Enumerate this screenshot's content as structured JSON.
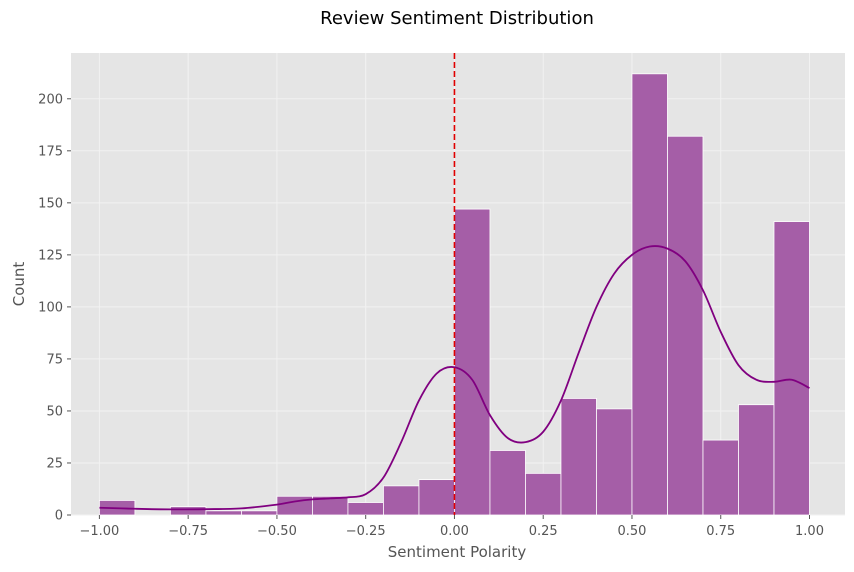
{
  "chart_data": {
    "type": "bar",
    "title": "Review Sentiment Distribution",
    "xlabel": "Sentiment Polarity",
    "ylabel": "Count",
    "xlim": [
      -1.08,
      1.1
    ],
    "ylim": [
      0,
      222
    ],
    "grid": true,
    "legend": "none",
    "colors": {
      "background": "#e5e5e5",
      "bar_fill": "#a55ea7",
      "bar_edge": "#ffffff",
      "kde_line": "#800080",
      "reference_line": "#e00000",
      "grid": "#f2f2f2",
      "text": "#555555"
    },
    "bins": [
      {
        "x0": -1.0,
        "x1": -0.9,
        "count": 7
      },
      {
        "x0": -0.9,
        "x1": -0.8,
        "count": 0
      },
      {
        "x0": -0.8,
        "x1": -0.7,
        "count": 4
      },
      {
        "x0": -0.7,
        "x1": -0.6,
        "count": 2
      },
      {
        "x0": -0.6,
        "x1": -0.5,
        "count": 2
      },
      {
        "x0": -0.5,
        "x1": -0.4,
        "count": 9
      },
      {
        "x0": -0.4,
        "x1": -0.3,
        "count": 9
      },
      {
        "x0": -0.3,
        "x1": -0.2,
        "count": 6
      },
      {
        "x0": -0.2,
        "x1": -0.1,
        "count": 14
      },
      {
        "x0": -0.1,
        "x1": 0.0,
        "count": 17
      },
      {
        "x0": 0.0,
        "x1": 0.1,
        "count": 147
      },
      {
        "x0": 0.1,
        "x1": 0.2,
        "count": 31
      },
      {
        "x0": 0.2,
        "x1": 0.3,
        "count": 20
      },
      {
        "x0": 0.3,
        "x1": 0.4,
        "count": 56
      },
      {
        "x0": 0.4,
        "x1": 0.5,
        "count": 51
      },
      {
        "x0": 0.5,
        "x1": 0.6,
        "count": 212
      },
      {
        "x0": 0.6,
        "x1": 0.7,
        "count": 182
      },
      {
        "x0": 0.7,
        "x1": 0.8,
        "count": 36
      },
      {
        "x0": 0.8,
        "x1": 0.9,
        "count": 53
      },
      {
        "x0": 0.9,
        "x1": 1.0,
        "count": 141
      }
    ],
    "kde": {
      "x": [
        -1.0,
        -0.9,
        -0.8,
        -0.7,
        -0.6,
        -0.5,
        -0.45,
        -0.4,
        -0.35,
        -0.3,
        -0.25,
        -0.2,
        -0.15,
        -0.1,
        -0.05,
        0.0,
        0.05,
        0.1,
        0.15,
        0.2,
        0.25,
        0.3,
        0.35,
        0.4,
        0.45,
        0.5,
        0.55,
        0.6,
        0.65,
        0.7,
        0.75,
        0.8,
        0.85,
        0.9,
        0.95,
        1.0
      ],
      "y": [
        3.5,
        3.0,
        2.7,
        2.8,
        3.2,
        5.0,
        6.5,
        7.5,
        8.0,
        8.5,
        10.0,
        18.0,
        35.0,
        55.0,
        68.0,
        71.0,
        65.0,
        48.0,
        37.0,
        35.0,
        40.0,
        55.0,
        78.0,
        100.0,
        116.0,
        125.0,
        129.0,
        128.0,
        122.0,
        108.0,
        88.0,
        72.0,
        65.0,
        64.0,
        65.0,
        61.0
      ]
    },
    "reference_line": {
      "x": 0.0,
      "style": "dashed"
    },
    "x_ticks": [
      {
        "value": -1.0,
        "label": "−1.00"
      },
      {
        "value": -0.75,
        "label": "−0.75"
      },
      {
        "value": -0.5,
        "label": "−0.50"
      },
      {
        "value": -0.25,
        "label": "−0.25"
      },
      {
        "value": 0.0,
        "label": "0.00"
      },
      {
        "value": 0.25,
        "label": "0.25"
      },
      {
        "value": 0.5,
        "label": "0.50"
      },
      {
        "value": 0.75,
        "label": "0.75"
      },
      {
        "value": 1.0,
        "label": "1.00"
      }
    ],
    "y_ticks": [
      {
        "value": 0,
        "label": "0"
      },
      {
        "value": 25,
        "label": "25"
      },
      {
        "value": 50,
        "label": "50"
      },
      {
        "value": 75,
        "label": "75"
      },
      {
        "value": 100,
        "label": "100"
      },
      {
        "value": 125,
        "label": "125"
      },
      {
        "value": 150,
        "label": "150"
      },
      {
        "value": 175,
        "label": "175"
      },
      {
        "value": 200,
        "label": "200"
      }
    ]
  }
}
